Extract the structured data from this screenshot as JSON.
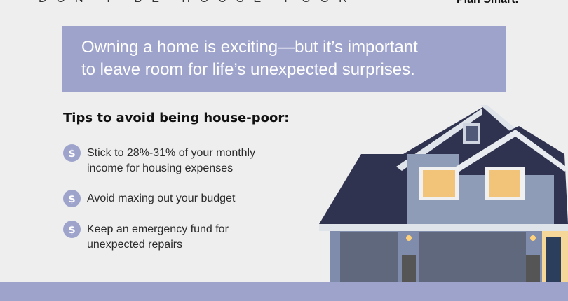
{
  "header": {
    "tagline": "DON'T BE HOUSE-POOR",
    "brand": "Plan Smart."
  },
  "banner": {
    "line1": "Owning a home is exciting—but it’s important",
    "line2": "to leave room for life’s unexpected surprises."
  },
  "tips": {
    "title": "Tips to avoid being house-poor:",
    "icon": "dollar-coin-icon",
    "items": [
      {
        "line1": "Stick to 28%-31% of your monthly",
        "line2": "income for housing expenses"
      },
      {
        "line1": "Avoid maxing out your budget",
        "line2": ""
      },
      {
        "line1": "Keep an emergency fund for",
        "line2": "unexpected repairs"
      }
    ],
    "coin_symbol": "$"
  },
  "colors": {
    "accent": "#9ea3cc",
    "background": "#eeeeee"
  }
}
